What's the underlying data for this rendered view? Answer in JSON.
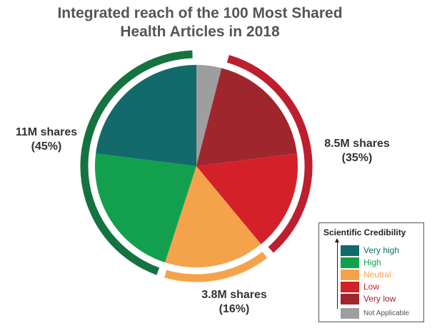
{
  "chart_data": {
    "type": "pie",
    "title_lines": [
      "Integrated reach of the 100 Most Shared",
      "Health Articles in 2018"
    ],
    "slices": [
      {
        "name": "Not Applicable",
        "value": 4,
        "color": "#9e9e9e"
      },
      {
        "name": "Very low",
        "value": 19,
        "color": "#a0262e"
      },
      {
        "name": "Low",
        "value": 16,
        "color": "#d32029"
      },
      {
        "name": "Neutral",
        "value": 16,
        "color": "#f5a34b"
      },
      {
        "name": "High",
        "value": 22,
        "color": "#12a04e"
      },
      {
        "name": "Very high",
        "value": 23,
        "color": "#126a6b"
      }
    ],
    "groups": [
      {
        "label": "8.5M shares",
        "percent_label": "(35%)",
        "value": 35,
        "color": "#be1e2d"
      },
      {
        "label": "3.8M shares",
        "percent_label": "(16%)",
        "value": 16,
        "color": "#f5a34b"
      },
      {
        "label": "11M shares",
        "percent_label": "(45%)",
        "value": 45,
        "color": "#147340"
      }
    ],
    "legend": {
      "title": "Scientific Credibility",
      "placement": "bottom-right",
      "items": [
        {
          "label": "Very high",
          "color": "#126a6b",
          "text_color": "#126a6b"
        },
        {
          "label": "High",
          "color": "#12a04e",
          "text_color": "#12a04e"
        },
        {
          "label": "Neutral",
          "color": "#f5a34b",
          "text_color": "#f5a34b"
        },
        {
          "label": "Low",
          "color": "#d32029",
          "text_color": "#d32029"
        },
        {
          "label": "Very low",
          "color": "#a0262e",
          "text_color": "#a0262e"
        },
        {
          "label": "Not Applicable",
          "color": "#9e9e9e",
          "text_color": "#555555"
        }
      ]
    }
  }
}
